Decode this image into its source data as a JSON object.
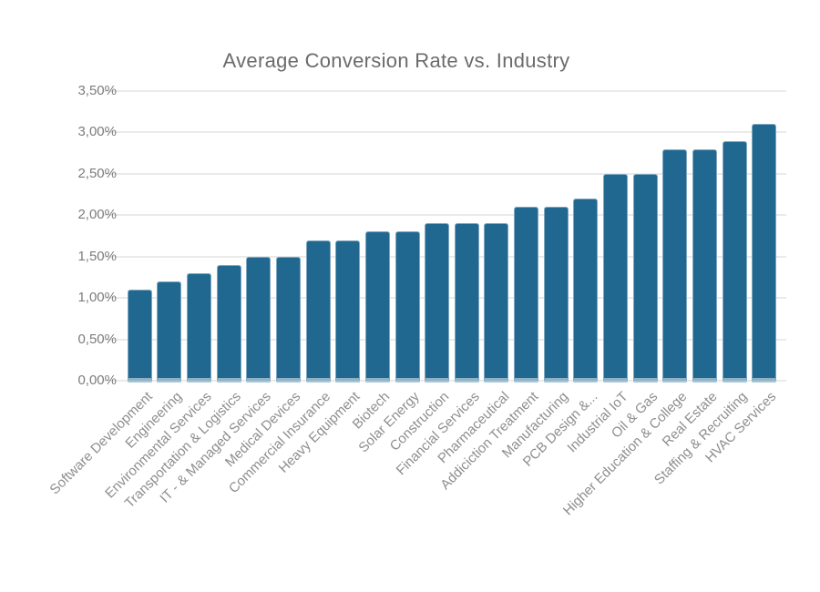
{
  "chart_data": {
    "type": "bar",
    "title": "Average Conversion Rate vs. Industry",
    "categories": [
      "Software Development",
      "Engineering",
      "Environmental Services",
      "Transportation & Logistics",
      "IT - & Managed Services",
      "Medical Devices",
      "Commercial Insurance",
      "Heavy Equipment",
      "Biotech",
      "Solar Energy",
      "Construction",
      "Financial Services",
      "Pharmaceutical",
      "Addiciction Treatment",
      "Manufacturing",
      "PCB Design &...",
      "Industrial IoT",
      "Oil & Gas",
      "Higher Education & College",
      "Real Estate",
      "Staffing & Recruiting",
      "HVAC Services"
    ],
    "values": [
      1.1,
      1.2,
      1.3,
      1.4,
      1.5,
      1.5,
      1.7,
      1.7,
      1.8,
      1.8,
      1.9,
      1.9,
      1.9,
      2.1,
      2.1,
      2.2,
      2.5,
      2.5,
      2.8,
      2.8,
      2.9,
      3.1
    ],
    "value_unit": "%",
    "xlabel": "",
    "ylabel": "",
    "ylim": [
      0,
      3.5
    ],
    "ytick_step": 0.5,
    "ytick_labels": [
      "0,00%",
      "0,50%",
      "1,00%",
      "1,50%",
      "2,00%",
      "2,50%",
      "3,00%",
      "3,50%"
    ],
    "decimal_separator": ",",
    "grid": true,
    "legend_position": "none",
    "bar_color": "#20688F",
    "bar_edge_color": "#9FBDD2",
    "bar_bottom_edge_color": "#8FB2C6",
    "under_dash_color": "#A9C6D7",
    "gridline_color": "#EAEAEA",
    "title_color": "#6B6B6B",
    "ytick_color": "#7C7C7C",
    "xtick_color": "#8E8E8E",
    "background_color": "#FFFFFF"
  }
}
